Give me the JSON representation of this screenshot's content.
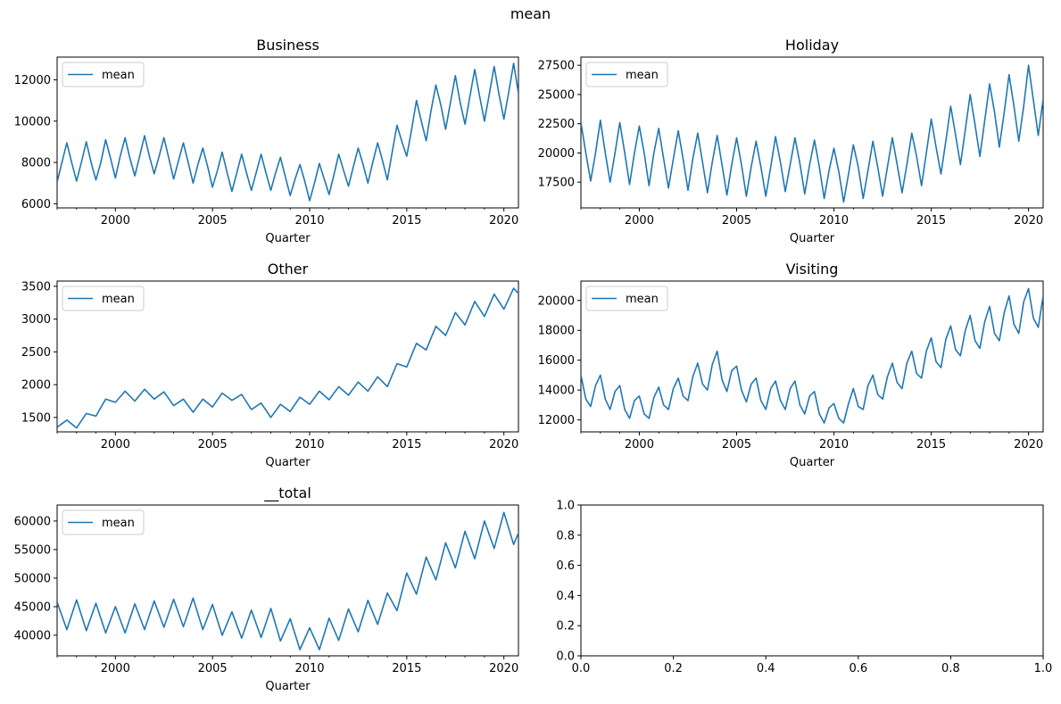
{
  "figure": {
    "title": "mean"
  },
  "chart_data": [
    {
      "type": "line",
      "title": "Business",
      "xlabel": "Quarter",
      "ylabel": "",
      "xlim": [
        1997.0,
        2020.75
      ],
      "ylim": [
        5800,
        13100
      ],
      "xticks": [
        2000,
        2005,
        2010,
        2015,
        2020
      ],
      "xtick_labels": [
        "2000",
        "2005",
        "2010",
        "2015",
        "2020"
      ],
      "yticks": [
        6000,
        8000,
        10000,
        12000
      ],
      "ytick_labels": [
        "6000",
        "8000",
        "10000",
        "12000"
      ],
      "legend": {
        "position": "upper-left",
        "entries": [
          "mean"
        ]
      },
      "grid": false,
      "series": [
        {
          "name": "mean",
          "color": "#1f77b4",
          "x_start": 1997.0,
          "x_step": 0.25,
          "values": [
            7050,
            8000,
            8950,
            8000,
            7100,
            8000,
            9000,
            8000,
            7150,
            8000,
            9100,
            8200,
            7250,
            8300,
            9200,
            8200,
            7350,
            8300,
            9300,
            8300,
            7450,
            8300,
            9200,
            8200,
            7200,
            8100,
            8950,
            8000,
            7000,
            7900,
            8700,
            7800,
            6800,
            7600,
            8500,
            7500,
            6600,
            7500,
            8400,
            7500,
            6650,
            7500,
            8400,
            7500,
            6650,
            7500,
            8250,
            7300,
            6400,
            7200,
            7900,
            7100,
            6150,
            7000,
            7950,
            7200,
            6450,
            7400,
            8400,
            7600,
            6850,
            7800,
            8700,
            7900,
            7000,
            8000,
            8950,
            8100,
            7150,
            8500,
            9800,
            9000,
            8300,
            9600,
            11000,
            10000,
            9050,
            10500,
            11750,
            10800,
            9600,
            10900,
            12200,
            10900,
            9850,
            11200,
            12500,
            11200,
            10000,
            11300,
            12650,
            11300,
            10100,
            11400,
            12800,
            11350
          ]
        }
      ]
    },
    {
      "type": "line",
      "title": "Holiday",
      "xlabel": "Quarter",
      "ylabel": "",
      "xlim": [
        1997.0,
        2020.75
      ],
      "ylim": [
        15300,
        28200
      ],
      "xticks": [
        2000,
        2005,
        2010,
        2015,
        2020
      ],
      "xtick_labels": [
        "2000",
        "2005",
        "2010",
        "2015",
        "2020"
      ],
      "yticks": [
        17500,
        20000,
        22500,
        25000,
        27500
      ],
      "ytick_labels": [
        "17500",
        "20000",
        "22500",
        "25000",
        "27500"
      ],
      "legend": {
        "position": "upper-left",
        "entries": [
          "mean"
        ]
      },
      "grid": false,
      "series": [
        {
          "name": "mean",
          "color": "#1f77b4",
          "x_start": 1997.0,
          "x_step": 0.25,
          "values": [
            22600,
            20000,
            17600,
            20000,
            22800,
            20000,
            17500,
            20000,
            22600,
            20000,
            17300,
            20000,
            22300,
            20000,
            17200,
            20000,
            22100,
            19500,
            17000,
            19500,
            21900,
            19500,
            16800,
            19500,
            21700,
            19200,
            16600,
            19200,
            21500,
            19000,
            16400,
            19000,
            21300,
            19000,
            16300,
            18800,
            21000,
            18800,
            16300,
            18800,
            21400,
            19200,
            16700,
            19000,
            21300,
            19100,
            16500,
            19000,
            21100,
            18800,
            16100,
            18500,
            20400,
            18400,
            15800,
            18200,
            20700,
            18800,
            16100,
            18500,
            21000,
            18800,
            16300,
            18800,
            21300,
            19000,
            16600,
            19000,
            21700,
            19700,
            17200,
            20000,
            22900,
            20500,
            18200,
            21000,
            24000,
            21500,
            19000,
            22000,
            25000,
            22400,
            19700,
            22800,
            25900,
            23500,
            20500,
            23500,
            26700,
            24000,
            21000,
            24000,
            27500,
            24500,
            21500,
            24600
          ]
        }
      ]
    },
    {
      "type": "line",
      "title": "Other",
      "xlabel": "Quarter",
      "ylabel": "",
      "xlim": [
        1997.0,
        2020.75
      ],
      "ylim": [
        1280,
        3580
      ],
      "xticks": [
        2000,
        2005,
        2010,
        2015,
        2020
      ],
      "xtick_labels": [
        "2000",
        "2005",
        "2010",
        "2015",
        "2020"
      ],
      "yticks": [
        1500,
        2000,
        2500,
        3000,
        3500
      ],
      "ytick_labels": [
        "1500",
        "2000",
        "2500",
        "3000",
        "3500"
      ],
      "legend": {
        "position": "upper-left",
        "entries": [
          "mean"
        ]
      },
      "grid": false,
      "series": [
        {
          "name": "mean",
          "color": "#1f77b4",
          "x_start": 1997.0,
          "x_step": 0.5,
          "values": [
            1350,
            1460,
            1340,
            1560,
            1520,
            1780,
            1730,
            1900,
            1750,
            1930,
            1780,
            1890,
            1680,
            1780,
            1580,
            1780,
            1660,
            1870,
            1760,
            1850,
            1620,
            1720,
            1500,
            1700,
            1590,
            1810,
            1700,
            1900,
            1770,
            1970,
            1840,
            2040,
            1900,
            2120,
            1970,
            2320,
            2270,
            2630,
            2530,
            2890,
            2750,
            3100,
            2910,
            3270,
            3040,
            3380,
            3150,
            3470,
            3310
          ]
        }
      ]
    },
    {
      "type": "line",
      "title": "Visiting",
      "xlabel": "Quarter",
      "ylabel": "",
      "xlim": [
        1997.0,
        2020.75
      ],
      "ylim": [
        11200,
        21300
      ],
      "xticks": [
        2000,
        2005,
        2010,
        2015,
        2020
      ],
      "xtick_labels": [
        "2000",
        "2005",
        "2010",
        "2015",
        "2020"
      ],
      "yticks": [
        12000,
        14000,
        16000,
        18000,
        20000
      ],
      "ytick_labels": [
        "12000",
        "14000",
        "16000",
        "18000",
        "20000"
      ],
      "legend": {
        "position": "upper-left",
        "entries": [
          "mean"
        ]
      },
      "grid": false,
      "series": [
        {
          "name": "mean",
          "color": "#1f77b4",
          "x_start": 1997.0,
          "x_step": 0.25,
          "values": [
            15000,
            13400,
            12900,
            14300,
            15000,
            13400,
            12700,
            13900,
            14300,
            12700,
            12100,
            13300,
            13600,
            12400,
            12100,
            13500,
            14200,
            13000,
            12700,
            14100,
            14800,
            13600,
            13300,
            14900,
            15800,
            14400,
            14000,
            15700,
            16600,
            14700,
            13900,
            15300,
            15600,
            14000,
            13200,
            14400,
            14800,
            13300,
            12700,
            14100,
            14600,
            13300,
            12700,
            14100,
            14600,
            13000,
            12400,
            13600,
            13900,
            12400,
            11800,
            12800,
            13100,
            12100,
            11800,
            13100,
            14100,
            12900,
            12700,
            14300,
            15000,
            13700,
            13400,
            14900,
            15800,
            14500,
            14100,
            15800,
            16600,
            15100,
            14800,
            16600,
            17500,
            15900,
            15500,
            17400,
            18300,
            16700,
            16300,
            18000,
            19000,
            17300,
            16800,
            18600,
            19600,
            17800,
            17300,
            19200,
            20300,
            18400,
            17800,
            19900,
            20800,
            18800,
            18200,
            20300
          ]
        }
      ]
    },
    {
      "type": "line",
      "title": "__total",
      "xlabel": "Quarter",
      "ylabel": "",
      "xlim": [
        1997.0,
        2020.75
      ],
      "ylim": [
        36400,
        62800
      ],
      "xticks": [
        2000,
        2005,
        2010,
        2015,
        2020
      ],
      "xtick_labels": [
        "2000",
        "2005",
        "2010",
        "2015",
        "2020"
      ],
      "yticks": [
        40000,
        45000,
        50000,
        55000,
        60000
      ],
      "ytick_labels": [
        "40000",
        "45000",
        "50000",
        "55000",
        "60000"
      ],
      "legend": {
        "position": "upper-left",
        "entries": [
          "mean"
        ]
      },
      "grid": false,
      "series": [
        {
          "name": "mean",
          "color": "#1f77b4",
          "x_start": 1997.0,
          "x_step": 0.5,
          "values": [
            45800,
            41000,
            46200,
            40800,
            45600,
            40400,
            45000,
            40400,
            45500,
            41000,
            46000,
            41400,
            46300,
            41500,
            46500,
            41000,
            45400,
            40000,
            44100,
            39500,
            44400,
            39600,
            44700,
            39000,
            42900,
            37500,
            41300,
            37500,
            43000,
            39100,
            44600,
            40600,
            46100,
            41900,
            47400,
            44300,
            50900,
            47200,
            53700,
            49700,
            56200,
            51800,
            58200,
            53400,
            60000,
            55200,
            61500,
            55900,
            59900
          ]
        }
      ]
    },
    {
      "type": "line",
      "title": "",
      "xlabel": "",
      "ylabel": "",
      "xlim": [
        0.0,
        1.0
      ],
      "ylim": [
        0.0,
        1.0
      ],
      "xticks": [
        0.0,
        0.2,
        0.4,
        0.6,
        0.8,
        1.0
      ],
      "xtick_labels": [
        "0.0",
        "0.2",
        "0.4",
        "0.6",
        "0.8",
        "1.0"
      ],
      "yticks": [
        0.0,
        0.2,
        0.4,
        0.6,
        0.8,
        1.0
      ],
      "ytick_labels": [
        "0.0",
        "0.2",
        "0.4",
        "0.6",
        "0.8",
        "1.0"
      ],
      "legend": null,
      "grid": false,
      "series": []
    }
  ]
}
